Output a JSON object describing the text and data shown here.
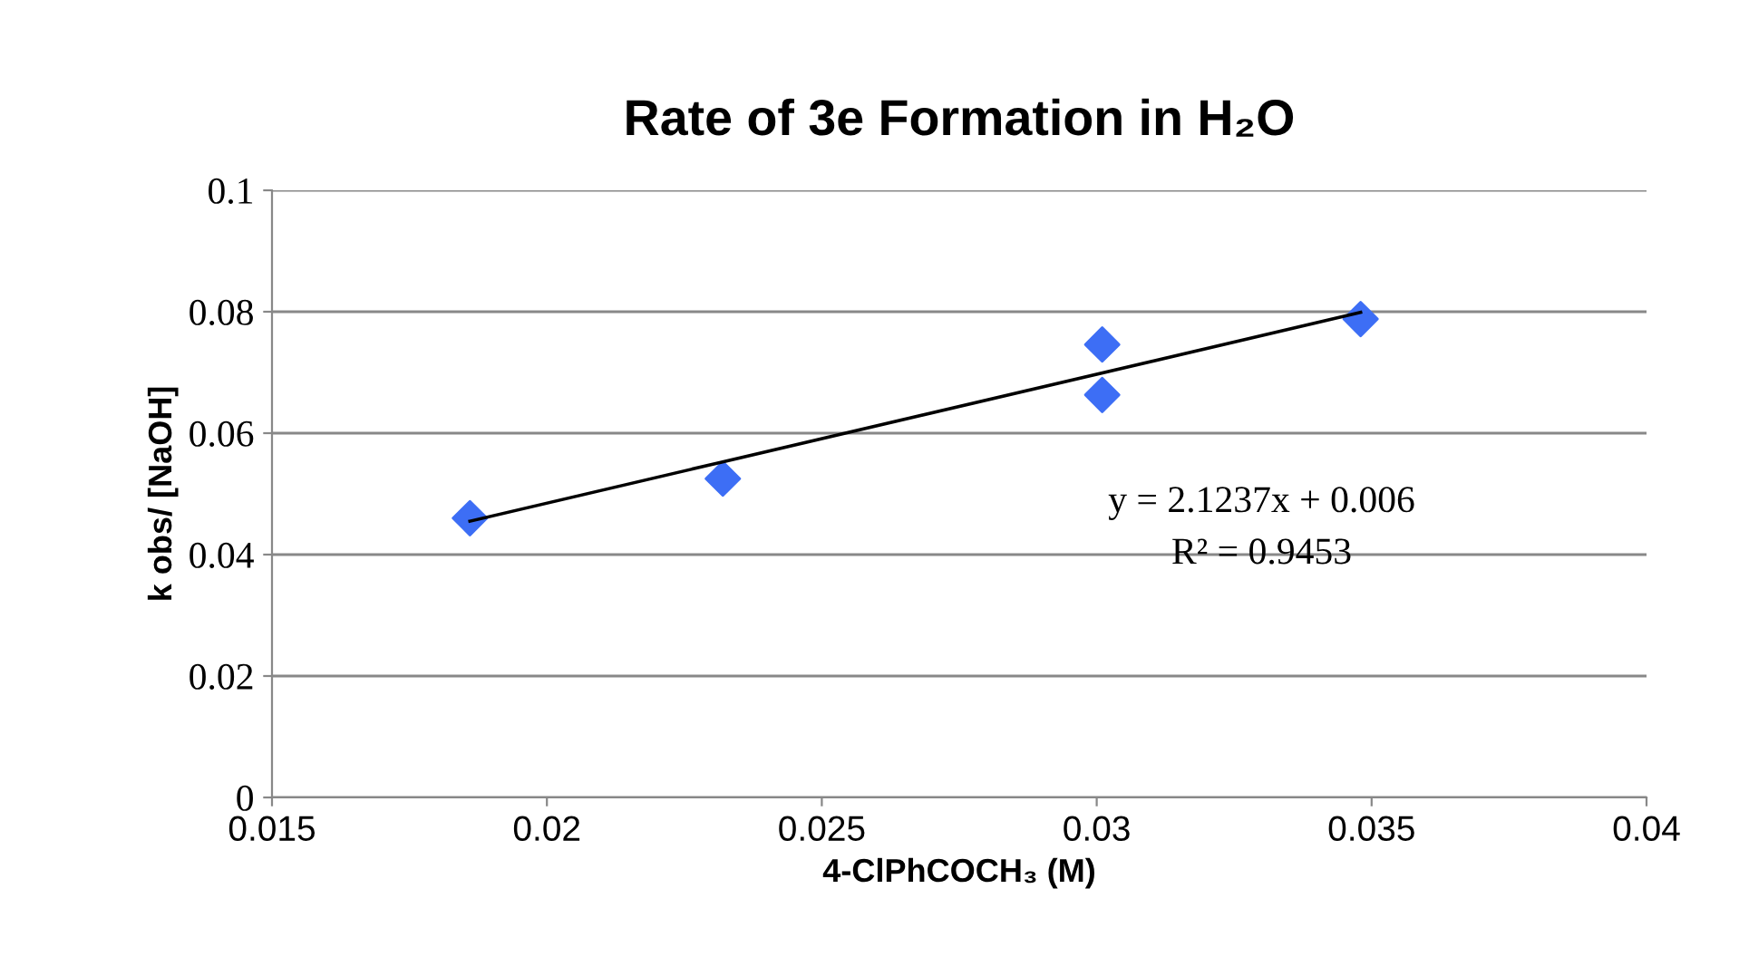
{
  "chart_data": {
    "type": "scatter",
    "title": "Rate of 3e Formation in H₂O",
    "xlabel": "4-ClPhCOCH₃ (M)",
    "ylabel": "k obs/ [NaOH]",
    "series": [
      {
        "color": "#3d6ef5",
        "marker": "diamond",
        "x": [
          0.0186,
          0.0232,
          0.0301,
          0.0301,
          0.0348
        ],
        "values": [
          0.046,
          0.0525,
          0.0746,
          0.0663,
          0.0788
        ]
      },
      {
        "type": "line",
        "color": "#000000",
        "marker": "none",
        "line_style": "solid",
        "x": [
          0.0186,
          0.0348
        ],
        "values": [
          0.0455,
          0.0799
        ]
      }
    ],
    "annotations": [
      "y = 2.1237x + 0.006",
      "R² = 0.9453"
    ],
    "xlim": [
      0.015,
      0.04
    ],
    "xticks": [
      0.015,
      0.02,
      0.025,
      0.03,
      0.035,
      0.04
    ],
    "ylim": [
      0,
      0.1
    ],
    "yticks": [
      0,
      0.02,
      0.04,
      0.06,
      0.08,
      0.1
    ],
    "grid": "y",
    "legend": false
  }
}
